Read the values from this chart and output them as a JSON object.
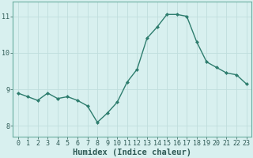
{
  "x": [
    0,
    1,
    2,
    3,
    4,
    5,
    6,
    7,
    8,
    9,
    10,
    11,
    12,
    13,
    14,
    15,
    16,
    17,
    18,
    19,
    20,
    21,
    22,
    23
  ],
  "y": [
    8.9,
    8.8,
    8.7,
    8.9,
    8.75,
    8.8,
    8.7,
    8.55,
    8.1,
    8.35,
    8.65,
    9.2,
    9.55,
    10.4,
    10.7,
    11.05,
    11.05,
    11.0,
    10.3,
    9.75,
    9.6,
    9.45,
    9.4,
    9.15
  ],
  "line_color": "#2e7d6e",
  "marker": "D",
  "marker_size": 2.0,
  "bg_color": "#d8f0ef",
  "grid_color": "#c0dedd",
  "xlabel": "Humidex (Indice chaleur)",
  "xlabel_fontsize": 7.5,
  "ylim": [
    7.7,
    11.4
  ],
  "xlim": [
    -0.5,
    23.5
  ],
  "yticks": [
    8,
    9,
    10,
    11
  ],
  "xticks": [
    0,
    1,
    2,
    3,
    4,
    5,
    6,
    7,
    8,
    9,
    10,
    11,
    12,
    13,
    14,
    15,
    16,
    17,
    18,
    19,
    20,
    21,
    22,
    23
  ],
  "tick_fontsize": 6.0,
  "line_width": 1.0,
  "spine_color": "#6aada0"
}
